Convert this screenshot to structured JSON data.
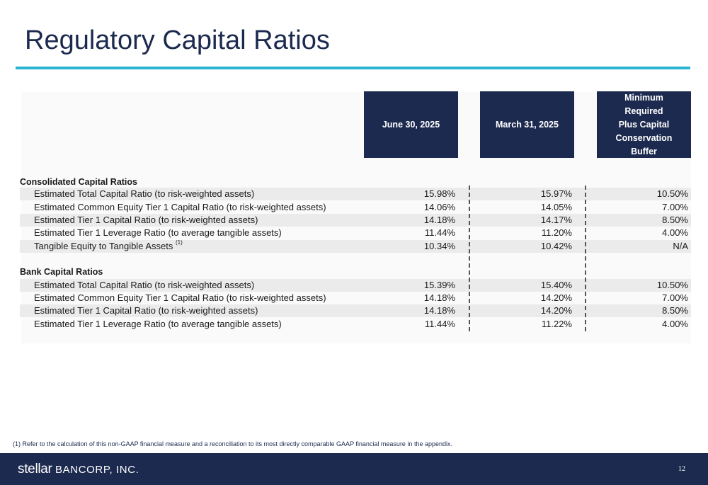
{
  "title": "Regulatory Capital Ratios",
  "columns": {
    "c1": "June 30, 2025",
    "c2": "March 31, 2025",
    "c3_lines": [
      "Minimum",
      "Required",
      "Plus Capital",
      "Conservation",
      "Buffer"
    ]
  },
  "consolidated": {
    "heading": "Consolidated Capital Ratios",
    "rows": [
      {
        "label": "Estimated Total Capital Ratio (to risk-weighted assets)",
        "sup": "",
        "v1": "15.98%",
        "v2": "15.97%",
        "v3": "10.50%"
      },
      {
        "label": "Estimated Common Equity Tier 1 Capital Ratio (to risk-weighted assets)",
        "sup": "",
        "v1": "14.06%",
        "v2": "14.05%",
        "v3": "7.00%"
      },
      {
        "label": "Estimated Tier 1 Capital Ratio (to risk-weighted assets)",
        "sup": "",
        "v1": "14.18%",
        "v2": "14.17%",
        "v3": "8.50%"
      },
      {
        "label": "Estimated Tier 1 Leverage Ratio (to average tangible assets)",
        "sup": "",
        "v1": "11.44%",
        "v2": "11.20%",
        "v3": "4.00%"
      },
      {
        "label": "Tangible Equity to Tangible Assets",
        "sup": "(1)",
        "v1": "10.34%",
        "v2": "10.42%",
        "v3": "N/A"
      }
    ]
  },
  "bank": {
    "heading": "Bank Capital Ratios",
    "rows": [
      {
        "label": "Estimated Total Capital Ratio (to risk-weighted assets)",
        "v1": "15.39%",
        "v2": "15.40%",
        "v3": "10.50%"
      },
      {
        "label": "Estimated Common Equity Tier 1 Capital Ratio (to risk-weighted assets)",
        "v1": "14.18%",
        "v2": "14.20%",
        "v3": "7.00%"
      },
      {
        "label": "Estimated Tier 1 Capital Ratio (to risk-weighted assets)",
        "v1": "14.18%",
        "v2": "14.20%",
        "v3": "8.50%"
      },
      {
        "label": "Estimated Tier 1 Leverage Ratio (to average tangible assets)",
        "v1": "11.44%",
        "v2": "11.22%",
        "v3": "4.00%"
      }
    ]
  },
  "footnote": "(1)  Refer to the calculation of this non-GAAP financial measure and a reconciliation to its most directly comparable GAAP financial measure in the appendix.",
  "footer": {
    "logo_word": "stellar",
    "logo_rest": "BANCORP, INC.",
    "page_number": "12"
  }
}
